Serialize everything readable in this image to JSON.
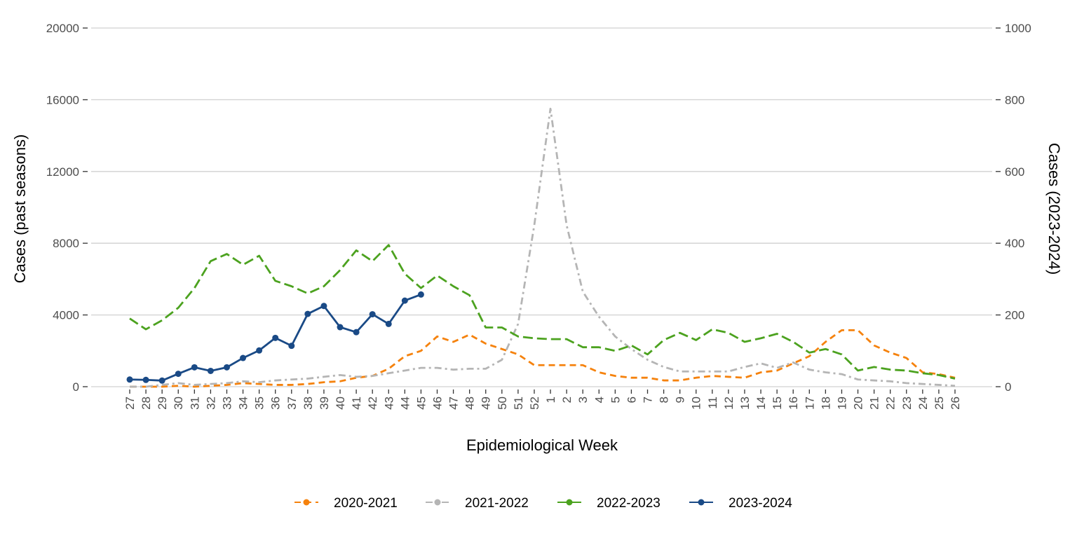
{
  "chart_data": {
    "type": "line",
    "x_label": "Epidemiological Week",
    "y_label": "Cases (past seasons)",
    "y2_label": "Cases (2023-2024)",
    "categories": [
      "27",
      "28",
      "29",
      "30",
      "31",
      "32",
      "33",
      "34",
      "35",
      "36",
      "37",
      "38",
      "39",
      "40",
      "41",
      "42",
      "43",
      "44",
      "45",
      "46",
      "47",
      "48",
      "49",
      "50",
      "51",
      "52",
      "1",
      "2",
      "3",
      "4",
      "5",
      "6",
      "7",
      "8",
      "9",
      "10",
      "11",
      "12",
      "13",
      "14",
      "15",
      "16",
      "17",
      "18",
      "19",
      "20",
      "21",
      "22",
      "23",
      "24",
      "25",
      "26"
    ],
    "ylim": [
      0,
      20000
    ],
    "yticks": [
      0,
      4000,
      8000,
      12000,
      16000,
      20000
    ],
    "y2lim": [
      0,
      1000
    ],
    "y2ticks": [
      0,
      200,
      400,
      600,
      800,
      1000
    ],
    "grid": true,
    "legend": "bottom",
    "series": [
      {
        "name": "2020-2021",
        "color": "#f5820d",
        "dash": "dashed",
        "values": [
          0,
          0,
          0,
          50,
          0,
          50,
          100,
          200,
          150,
          100,
          100,
          150,
          250,
          300,
          500,
          600,
          1000,
          1700,
          2000,
          2800,
          2500,
          2900,
          2400,
          2100,
          1800,
          1200,
          1200,
          1200,
          1200,
          800,
          600,
          500,
          500,
          350,
          350,
          500,
          600,
          550,
          500,
          800,
          900,
          1300,
          1700,
          2500,
          3150,
          3150,
          2300,
          1900,
          1600,
          800,
          700,
          500
        ]
      },
      {
        "name": "2021-2022",
        "color": "#b5b5b5",
        "dash": "dashdot",
        "values": [
          0,
          0,
          100,
          200,
          100,
          150,
          200,
          300,
          250,
          350,
          400,
          450,
          550,
          650,
          550,
          600,
          750,
          900,
          1050,
          1050,
          950,
          1000,
          1000,
          1500,
          3500,
          9000,
          15500,
          9000,
          5300,
          3900,
          2800,
          2100,
          1500,
          1100,
          850,
          850,
          850,
          850,
          1100,
          1300,
          1050,
          1350,
          950,
          800,
          700,
          400,
          350,
          300,
          200,
          150,
          100,
          50
        ]
      },
      {
        "name": "2022-2023",
        "color": "#4ca21f",
        "dash": "longdash",
        "values": [
          3800,
          3200,
          3700,
          4400,
          5500,
          7000,
          7400,
          6800,
          7300,
          5900,
          5600,
          5200,
          5600,
          6500,
          7600,
          7000,
          7900,
          6300,
          5500,
          6200,
          5600,
          5100,
          3300,
          3300,
          2800,
          2700,
          2650,
          2650,
          2200,
          2200,
          2000,
          2300,
          1800,
          2600,
          3000,
          2600,
          3200,
          3000,
          2500,
          2700,
          2950,
          2500,
          1900,
          2100,
          1800,
          900,
          1100,
          950,
          900,
          750,
          650,
          450
        ]
      },
      {
        "name": "2023-2024",
        "color": "#1a4a86",
        "dash": "solid",
        "axis": "y2",
        "markers": true,
        "values": [
          20,
          19,
          17,
          36,
          54,
          44,
          54,
          80,
          101,
          136,
          114,
          203,
          225,
          166,
          152,
          202,
          175,
          240,
          257,
          null,
          null,
          null,
          null,
          null,
          null,
          null,
          null,
          null,
          null,
          null,
          null,
          null,
          null,
          null,
          null,
          null,
          null,
          null,
          null,
          null,
          null,
          null,
          null,
          null,
          null,
          null,
          null,
          null,
          null,
          null,
          null,
          null
        ]
      }
    ]
  }
}
